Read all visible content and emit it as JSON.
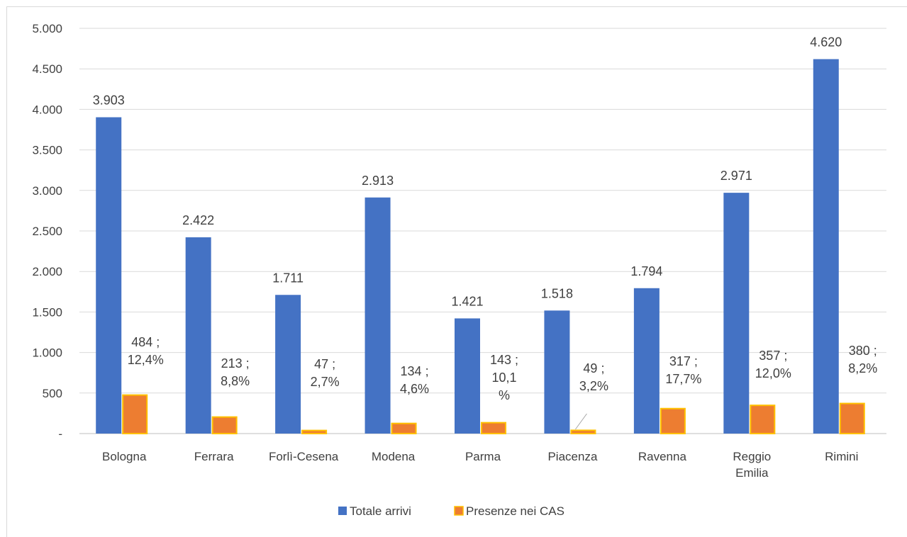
{
  "chart_data": {
    "type": "bar",
    "title": "",
    "xlabel": "",
    "ylabel": "",
    "ylim": [
      0,
      5000
    ],
    "yticks": [
      0,
      500,
      1000,
      1500,
      2000,
      2500,
      3000,
      3500,
      4000,
      4500,
      5000
    ],
    "ytick_labels": [
      "-",
      "500",
      "1.000",
      "1.500",
      "2.000",
      "2.500",
      "3.000",
      "3.500",
      "4.000",
      "4.500",
      "5.000"
    ],
    "grid": true,
    "legend_position": "bottom",
    "categories": [
      [
        "Bologna"
      ],
      [
        "Ferrara"
      ],
      [
        "Forlì-Cesena"
      ],
      [
        "Modena"
      ],
      [
        "Parma"
      ],
      [
        "Piacenza"
      ],
      [
        "Ravenna"
      ],
      [
        "Reggio",
        "Emilia"
      ],
      [
        "Rimini"
      ]
    ],
    "series": [
      {
        "name": "Totale arrivi",
        "color": "#4472C4",
        "values": [
          3903,
          2422,
          1711,
          2913,
          1421,
          1518,
          1794,
          2971,
          4620
        ],
        "labels": [
          [
            "3.903"
          ],
          [
            "2.422"
          ],
          [
            "1.711"
          ],
          [
            "2.913"
          ],
          [
            "1.421"
          ],
          [
            "1.518"
          ],
          [
            "1.794"
          ],
          [
            "2.971"
          ],
          [
            "4.620"
          ]
        ]
      },
      {
        "name": "Presenze nei CAS",
        "color": "#ED7D31",
        "edge_color": "#FFC000",
        "values": [
          484,
          213,
          47,
          134,
          143,
          49,
          317,
          357,
          380
        ],
        "labels": [
          [
            "484 ;",
            "12,4%"
          ],
          [
            "213 ;",
            "8,8%"
          ],
          [
            "47 ;",
            "2,7%"
          ],
          [
            "134 ;",
            "4,6%"
          ],
          [
            "143 ;",
            "10,1",
            "%"
          ],
          [
            "49 ;",
            "3,2%"
          ],
          [
            "317 ;",
            "17,7%"
          ],
          [
            "357 ;",
            "12,0%"
          ],
          [
            "380 ;",
            "8,2%"
          ]
        ]
      }
    ]
  }
}
